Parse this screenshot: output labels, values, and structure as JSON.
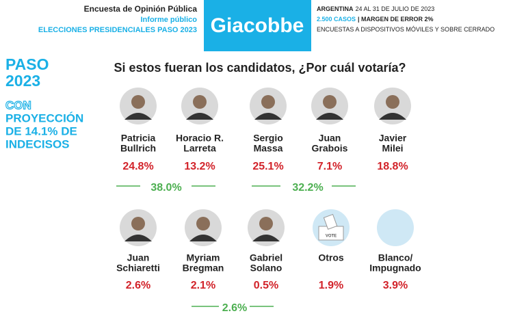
{
  "header": {
    "lines": [
      "Encuesta de Opinión Pública",
      "Informe público",
      "ELECCIONES PRESIDENCIALES PASO 2023"
    ],
    "brand": "Giacobbe",
    "info": [
      {
        "bold": "ARGENTINA",
        "rest": "24 AL 31 DE JULIO DE 2023"
      },
      {
        "bold": "2.500 CASOS",
        "rest": "| MARGEN DE ERROR 2%"
      },
      {
        "bold": "",
        "rest": "ENCUESTAS A DISPOSITIVOS MÓVILES Y SOBRE CERRADO"
      }
    ]
  },
  "side": {
    "title": [
      "PASO",
      "2023"
    ],
    "outline": "CON",
    "lines": [
      "PROYECCIÓN",
      "DE 14.1% DE",
      "INDECISOS"
    ]
  },
  "question": "Si estos fueran los candidatos, ¿Por cuál votaría?",
  "rows": [
    {
      "candidates": [
        {
          "name": [
            "Patricia",
            "Bullrich"
          ],
          "pct": "24.8%"
        },
        {
          "name": [
            "Horacio R.",
            "Larreta"
          ],
          "pct": "13.2%"
        },
        {
          "name": [
            "Sergio",
            "Massa"
          ],
          "pct": "25.1%"
        },
        {
          "name": [
            "Juan",
            "Grabois"
          ],
          "pct": "7.1%"
        },
        {
          "name": [
            "Javier",
            "Milei"
          ],
          "pct": "18.8%"
        }
      ],
      "groups": [
        {
          "pct": "38.0%"
        },
        {
          "pct": "32.2%"
        }
      ]
    },
    {
      "candidates": [
        {
          "name": [
            "Juan",
            "Schiaretti"
          ],
          "pct": "2.6%"
        },
        {
          "name": [
            "Myriam",
            "Bregman"
          ],
          "pct": "2.1%"
        },
        {
          "name": [
            "Gabriel",
            "Solano"
          ],
          "pct": "0.5%"
        },
        {
          "name": [
            "Otros"
          ],
          "pct": "1.9%",
          "icon": "VOTE"
        },
        {
          "name": [
            "Blanco/",
            "Impugnado"
          ],
          "pct": "3.9%"
        }
      ],
      "groups": [
        {
          "pct": "2.6%"
        }
      ]
    }
  ]
}
